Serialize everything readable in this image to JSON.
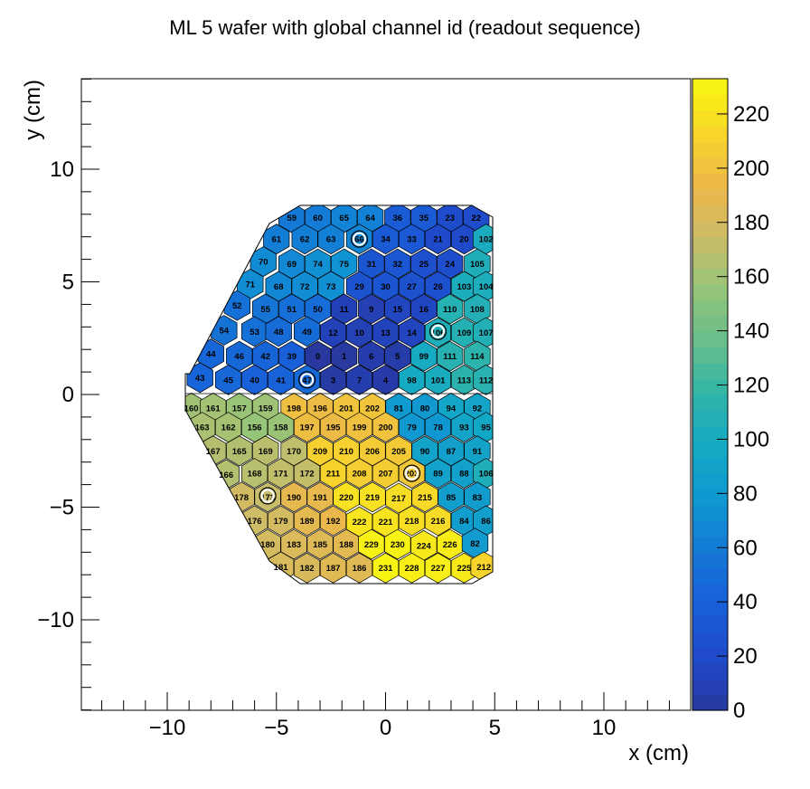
{
  "chart_data": {
    "type": "heatmap",
    "title": "ML 5 wafer with global channel id (readout sequence)",
    "xlabel": "x (cm)",
    "ylabel": "y (cm)",
    "xlim": [
      -14,
      14
    ],
    "ylim": [
      -14,
      14
    ],
    "x_ticks": [
      "-10",
      "-5",
      "0",
      "5",
      "10"
    ],
    "y_ticks": [
      "-10",
      "-5",
      "0",
      "5",
      "10"
    ],
    "colorbar": {
      "min": 0,
      "max": 233,
      "ticks": [
        "0",
        "20",
        "40",
        "60",
        "80",
        "100",
        "120",
        "140",
        "160",
        "180",
        "200",
        "220"
      ]
    },
    "calibration_cells": [
      {
        "x": -1.2,
        "y": 6.9
      },
      {
        "x": 2.4,
        "y": 2.8
      },
      {
        "x": -3.6,
        "y": 0.65
      },
      {
        "x": 1.2,
        "y": -3.5
      },
      {
        "x": -5.4,
        "y": -4.5
      }
    ],
    "cells": [
      {
        "id": 59,
        "x": -4.3,
        "y": 7.85
      },
      {
        "id": 60,
        "x": -3.1,
        "y": 7.85
      },
      {
        "id": 65,
        "x": -1.9,
        "y": 7.85
      },
      {
        "id": 64,
        "x": -0.7,
        "y": 7.85
      },
      {
        "id": 36,
        "x": 0.55,
        "y": 7.85
      },
      {
        "id": 35,
        "x": 1.75,
        "y": 7.85
      },
      {
        "id": 23,
        "x": 2.95,
        "y": 7.85
      },
      {
        "id": 22,
        "x": 4.15,
        "y": 7.85
      },
      {
        "id": 61,
        "x": -5.0,
        "y": 6.9
      },
      {
        "id": 62,
        "x": -3.7,
        "y": 6.9
      },
      {
        "id": 63,
        "x": -2.5,
        "y": 6.9
      },
      {
        "id": 66,
        "x": -1.2,
        "y": 6.9
      },
      {
        "id": 34,
        "x": 0.0,
        "y": 6.9
      },
      {
        "id": 33,
        "x": 1.2,
        "y": 6.9
      },
      {
        "id": 21,
        "x": 2.4,
        "y": 6.9
      },
      {
        "id": 20,
        "x": 3.6,
        "y": 6.9
      },
      {
        "id": 102,
        "x": 4.6,
        "y": 6.9
      },
      {
        "id": 70,
        "x": -5.6,
        "y": 5.9
      },
      {
        "id": 69,
        "x": -4.3,
        "y": 5.8
      },
      {
        "id": 74,
        "x": -3.1,
        "y": 5.8
      },
      {
        "id": 75,
        "x": -1.9,
        "y": 5.8
      },
      {
        "id": 31,
        "x": -0.65,
        "y": 5.8
      },
      {
        "id": 32,
        "x": 0.55,
        "y": 5.8
      },
      {
        "id": 25,
        "x": 1.75,
        "y": 5.8
      },
      {
        "id": 24,
        "x": 2.95,
        "y": 5.8
      },
      {
        "id": 105,
        "x": 4.2,
        "y": 5.8
      },
      {
        "id": 71,
        "x": -6.2,
        "y": 4.9
      },
      {
        "id": 68,
        "x": -4.9,
        "y": 4.8
      },
      {
        "id": 72,
        "x": -3.7,
        "y": 4.8
      },
      {
        "id": 73,
        "x": -2.5,
        "y": 4.8
      },
      {
        "id": 29,
        "x": -1.2,
        "y": 4.8
      },
      {
        "id": 30,
        "x": 0.0,
        "y": 4.8
      },
      {
        "id": 27,
        "x": 1.2,
        "y": 4.8
      },
      {
        "id": 26,
        "x": 2.4,
        "y": 4.8
      },
      {
        "id": 103,
        "x": 3.6,
        "y": 4.8
      },
      {
        "id": 104,
        "x": 4.6,
        "y": 4.8
      },
      {
        "id": 52,
        "x": -6.8,
        "y": 3.95
      },
      {
        "id": 55,
        "x": -5.5,
        "y": 3.8
      },
      {
        "id": 51,
        "x": -4.3,
        "y": 3.8
      },
      {
        "id": 50,
        "x": -3.1,
        "y": 3.8
      },
      {
        "id": 11,
        "x": -1.9,
        "y": 3.8
      },
      {
        "id": 9,
        "x": -0.65,
        "y": 3.8
      },
      {
        "id": 15,
        "x": 0.55,
        "y": 3.8
      },
      {
        "id": 16,
        "x": 1.75,
        "y": 3.8
      },
      {
        "id": 110,
        "x": 2.95,
        "y": 3.8
      },
      {
        "id": 108,
        "x": 4.2,
        "y": 3.8
      },
      {
        "id": 54,
        "x": -7.4,
        "y": 2.85
      },
      {
        "id": 53,
        "x": -6.0,
        "y": 2.8
      },
      {
        "id": 48,
        "x": -4.9,
        "y": 2.8
      },
      {
        "id": 49,
        "x": -3.6,
        "y": 2.8
      },
      {
        "id": 12,
        "x": -2.4,
        "y": 2.75
      },
      {
        "id": 10,
        "x": -1.2,
        "y": 2.75
      },
      {
        "id": 13,
        "x": 0.0,
        "y": 2.75
      },
      {
        "id": 14,
        "x": 1.2,
        "y": 2.75
      },
      {
        "id": 106,
        "x": 2.4,
        "y": 2.75
      },
      {
        "id": 109,
        "x": 3.6,
        "y": 2.75
      },
      {
        "id": 107,
        "x": 4.6,
        "y": 2.75
      },
      {
        "id": 44,
        "x": -8.0,
        "y": 1.8
      },
      {
        "id": 46,
        "x": -6.7,
        "y": 1.7
      },
      {
        "id": 42,
        "x": -5.5,
        "y": 1.7
      },
      {
        "id": 39,
        "x": -4.3,
        "y": 1.7
      },
      {
        "id": 0,
        "x": -3.1,
        "y": 1.7
      },
      {
        "id": 1,
        "x": -1.9,
        "y": 1.7
      },
      {
        "id": 6,
        "x": -0.65,
        "y": 1.7
      },
      {
        "id": 5,
        "x": 0.55,
        "y": 1.7
      },
      {
        "id": 99,
        "x": 1.75,
        "y": 1.7
      },
      {
        "id": 111,
        "x": 2.95,
        "y": 1.7
      },
      {
        "id": 114,
        "x": 4.2,
        "y": 1.7
      },
      {
        "id": 43,
        "x": -8.5,
        "y": 0.75
      },
      {
        "id": 45,
        "x": -7.2,
        "y": 0.65
      },
      {
        "id": 40,
        "x": -6.0,
        "y": 0.65
      },
      {
        "id": 41,
        "x": -4.8,
        "y": 0.65
      },
      {
        "id": 47,
        "x": -3.6,
        "y": 0.65
      },
      {
        "id": 3,
        "x": -2.4,
        "y": 0.65
      },
      {
        "id": 7,
        "x": -1.2,
        "y": 0.65
      },
      {
        "id": 4,
        "x": 0.0,
        "y": 0.65
      },
      {
        "id": 98,
        "x": 1.2,
        "y": 0.65
      },
      {
        "id": 101,
        "x": 2.4,
        "y": 0.65
      },
      {
        "id": 113,
        "x": 3.6,
        "y": 0.65
      },
      {
        "id": 112,
        "x": 4.6,
        "y": 0.65
      },
      {
        "id": 160,
        "x": -8.9,
        "y": -0.6
      },
      {
        "id": 161,
        "x": -7.9,
        "y": -0.6
      },
      {
        "id": 157,
        "x": -6.7,
        "y": -0.6
      },
      {
        "id": 159,
        "x": -5.5,
        "y": -0.6
      },
      {
        "id": 198,
        "x": -4.2,
        "y": -0.6
      },
      {
        "id": 196,
        "x": -3.0,
        "y": -0.6
      },
      {
        "id": 201,
        "x": -1.8,
        "y": -0.6
      },
      {
        "id": 202,
        "x": -0.6,
        "y": -0.6
      },
      {
        "id": 81,
        "x": 0.6,
        "y": -0.6
      },
      {
        "id": 80,
        "x": 1.8,
        "y": -0.6
      },
      {
        "id": 94,
        "x": 3.0,
        "y": -0.6
      },
      {
        "id": 92,
        "x": 4.2,
        "y": -0.6
      },
      {
        "id": 163,
        "x": -8.4,
        "y": -1.45
      },
      {
        "id": 162,
        "x": -7.2,
        "y": -1.45
      },
      {
        "id": 156,
        "x": -6.0,
        "y": -1.45
      },
      {
        "id": 158,
        "x": -4.8,
        "y": -1.45
      },
      {
        "id": 197,
        "x": -3.6,
        "y": -1.45
      },
      {
        "id": 195,
        "x": -2.4,
        "y": -1.45
      },
      {
        "id": 199,
        "x": -1.2,
        "y": -1.45
      },
      {
        "id": 200,
        "x": 0.0,
        "y": -1.45
      },
      {
        "id": 79,
        "x": 1.2,
        "y": -1.45
      },
      {
        "id": 78,
        "x": 2.4,
        "y": -1.45
      },
      {
        "id": 93,
        "x": 3.6,
        "y": -1.45
      },
      {
        "id": 95,
        "x": 4.6,
        "y": -1.45
      },
      {
        "id": 167,
        "x": -7.9,
        "y": -2.5
      },
      {
        "id": 165,
        "x": -6.7,
        "y": -2.5
      },
      {
        "id": 169,
        "x": -5.5,
        "y": -2.5
      },
      {
        "id": 170,
        "x": -4.2,
        "y": -2.5
      },
      {
        "id": 209,
        "x": -3.0,
        "y": -2.5
      },
      {
        "id": 210,
        "x": -1.8,
        "y": -2.5
      },
      {
        "id": 206,
        "x": -0.6,
        "y": -2.5
      },
      {
        "id": 205,
        "x": 0.6,
        "y": -2.5
      },
      {
        "id": 90,
        "x": 1.8,
        "y": -2.5
      },
      {
        "id": 87,
        "x": 3.0,
        "y": -2.5
      },
      {
        "id": 91,
        "x": 4.2,
        "y": -2.5
      },
      {
        "id": 166,
        "x": -7.3,
        "y": -3.55
      },
      {
        "id": 168,
        "x": -6.0,
        "y": -3.5
      },
      {
        "id": 171,
        "x": -4.8,
        "y": -3.5
      },
      {
        "id": 172,
        "x": -3.6,
        "y": -3.5
      },
      {
        "id": 211,
        "x": -2.4,
        "y": -3.5
      },
      {
        "id": 208,
        "x": -1.2,
        "y": -3.5
      },
      {
        "id": 207,
        "x": 0.0,
        "y": -3.5
      },
      {
        "id": 203,
        "x": 1.2,
        "y": -3.5
      },
      {
        "id": 89,
        "x": 2.4,
        "y": -3.5
      },
      {
        "id": 88,
        "x": 3.6,
        "y": -3.5
      },
      {
        "id": 106,
        "x": 4.6,
        "y": -3.5
      },
      {
        "id": 178,
        "x": -6.6,
        "y": -4.55
      },
      {
        "id": 173,
        "x": -5.4,
        "y": -4.55
      },
      {
        "id": 190,
        "x": -4.2,
        "y": -4.55
      },
      {
        "id": 191,
        "x": -3.0,
        "y": -4.55
      },
      {
        "id": 220,
        "x": -1.8,
        "y": -4.55
      },
      {
        "id": 219,
        "x": -0.6,
        "y": -4.55
      },
      {
        "id": 217,
        "x": 0.6,
        "y": -4.6
      },
      {
        "id": 215,
        "x": 1.8,
        "y": -4.55
      },
      {
        "id": 85,
        "x": 3.0,
        "y": -4.55
      },
      {
        "id": 83,
        "x": 4.2,
        "y": -4.55
      },
      {
        "id": 176,
        "x": -6.0,
        "y": -5.6
      },
      {
        "id": 179,
        "x": -4.8,
        "y": -5.6
      },
      {
        "id": 189,
        "x": -3.6,
        "y": -5.6
      },
      {
        "id": 192,
        "x": -2.4,
        "y": -5.6
      },
      {
        "id": 222,
        "x": -1.2,
        "y": -5.65
      },
      {
        "id": 221,
        "x": 0.0,
        "y": -5.65
      },
      {
        "id": 218,
        "x": 1.2,
        "y": -5.6
      },
      {
        "id": 216,
        "x": 2.4,
        "y": -5.6
      },
      {
        "id": 84,
        "x": 3.6,
        "y": -5.6
      },
      {
        "id": 86,
        "x": 4.6,
        "y": -5.6
      },
      {
        "id": 180,
        "x": -5.4,
        "y": -6.65
      },
      {
        "id": 183,
        "x": -4.2,
        "y": -6.65
      },
      {
        "id": 185,
        "x": -3.0,
        "y": -6.65
      },
      {
        "id": 188,
        "x": -1.8,
        "y": -6.65
      },
      {
        "id": 229,
        "x": -0.65,
        "y": -6.65
      },
      {
        "id": 230,
        "x": 0.55,
        "y": -6.65
      },
      {
        "id": 224,
        "x": 1.75,
        "y": -6.7
      },
      {
        "id": 226,
        "x": 2.95,
        "y": -6.65
      },
      {
        "id": 82,
        "x": 4.1,
        "y": -6.6
      },
      {
        "id": 181,
        "x": -4.8,
        "y": -7.65
      },
      {
        "id": 182,
        "x": -3.6,
        "y": -7.7
      },
      {
        "id": 187,
        "x": -2.4,
        "y": -7.7
      },
      {
        "id": 186,
        "x": -1.2,
        "y": -7.7
      },
      {
        "id": 231,
        "x": 0.0,
        "y": -7.7
      },
      {
        "id": 228,
        "x": 1.2,
        "y": -7.7
      },
      {
        "id": 227,
        "x": 2.4,
        "y": -7.7
      },
      {
        "id": 225,
        "x": 3.6,
        "y": -7.7
      },
      {
        "id": 212,
        "x": 4.5,
        "y": -7.65
      }
    ]
  }
}
